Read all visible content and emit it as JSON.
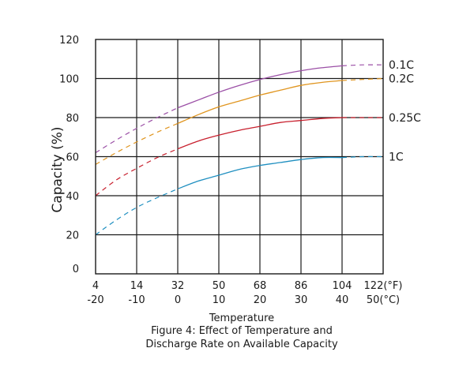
{
  "chart_data": {
    "type": "line",
    "title": "",
    "ylabel": "Capacity (%)",
    "xlabel": "Temperature",
    "caption_lines": [
      "Figure 4: Effect of Temperature and",
      "Discharge Rate on Available Capacity"
    ],
    "x_ticks_f": [
      "4",
      "14",
      "32",
      "50",
      "68",
      "86",
      "104",
      "122(°F)"
    ],
    "x_ticks_c": [
      "-20",
      "-10",
      "0",
      "10",
      "20",
      "30",
      "40",
      "50(°C)"
    ],
    "x_values_c": [
      -20,
      -10,
      0,
      10,
      20,
      30,
      40,
      50
    ],
    "xlim": [
      -20,
      50
    ],
    "ylim": [
      0,
      120
    ],
    "y_ticks": [
      "0",
      "20",
      "40",
      "60",
      "80",
      "100",
      "120"
    ],
    "grid": true,
    "solid_from_x": 0,
    "series": [
      {
        "name": "0.1C",
        "color": "#9b4fa6",
        "points": [
          [
            -20,
            62
          ],
          [
            -15,
            68.5
          ],
          [
            -10,
            74.5
          ],
          [
            -5,
            80
          ],
          [
            0,
            85
          ],
          [
            5,
            89
          ],
          [
            10,
            93
          ],
          [
            15,
            96.5
          ],
          [
            20,
            99.5
          ],
          [
            25,
            102
          ],
          [
            30,
            104
          ],
          [
            35,
            105.5
          ],
          [
            40,
            106.5
          ],
          [
            45,
            107
          ],
          [
            50,
            107
          ]
        ]
      },
      {
        "name": "0.2C",
        "color": "#e0951f",
        "points": [
          [
            -20,
            56
          ],
          [
            -15,
            62
          ],
          [
            -10,
            67.5
          ],
          [
            -5,
            72.5
          ],
          [
            0,
            77
          ],
          [
            5,
            81.5
          ],
          [
            10,
            85.5
          ],
          [
            15,
            88.5
          ],
          [
            20,
            91.5
          ],
          [
            25,
            94
          ],
          [
            30,
            96.5
          ],
          [
            35,
            98
          ],
          [
            40,
            99
          ],
          [
            45,
            99.5
          ],
          [
            50,
            100
          ]
        ]
      },
      {
        "name": "0.25C",
        "color": "#c8202e",
        "points": [
          [
            -20,
            40
          ],
          [
            -15,
            48
          ],
          [
            -10,
            54
          ],
          [
            -5,
            59.5
          ],
          [
            0,
            64
          ],
          [
            5,
            68
          ],
          [
            10,
            71
          ],
          [
            15,
            73.5
          ],
          [
            20,
            75.5
          ],
          [
            25,
            77.5
          ],
          [
            30,
            78.5
          ],
          [
            35,
            79.5
          ],
          [
            40,
            80
          ],
          [
            45,
            80
          ],
          [
            50,
            80
          ]
        ]
      },
      {
        "name": "1C",
        "color": "#1f8fc0",
        "points": [
          [
            -20,
            20
          ],
          [
            -15,
            27.5
          ],
          [
            -10,
            34
          ],
          [
            -5,
            39
          ],
          [
            0,
            43.5
          ],
          [
            5,
            47.5
          ],
          [
            10,
            50.5
          ],
          [
            15,
            53.5
          ],
          [
            20,
            55.5
          ],
          [
            25,
            57
          ],
          [
            30,
            58.5
          ],
          [
            35,
            59.5
          ],
          [
            40,
            59.5
          ],
          [
            45,
            60
          ],
          [
            50,
            60
          ]
        ]
      }
    ]
  }
}
